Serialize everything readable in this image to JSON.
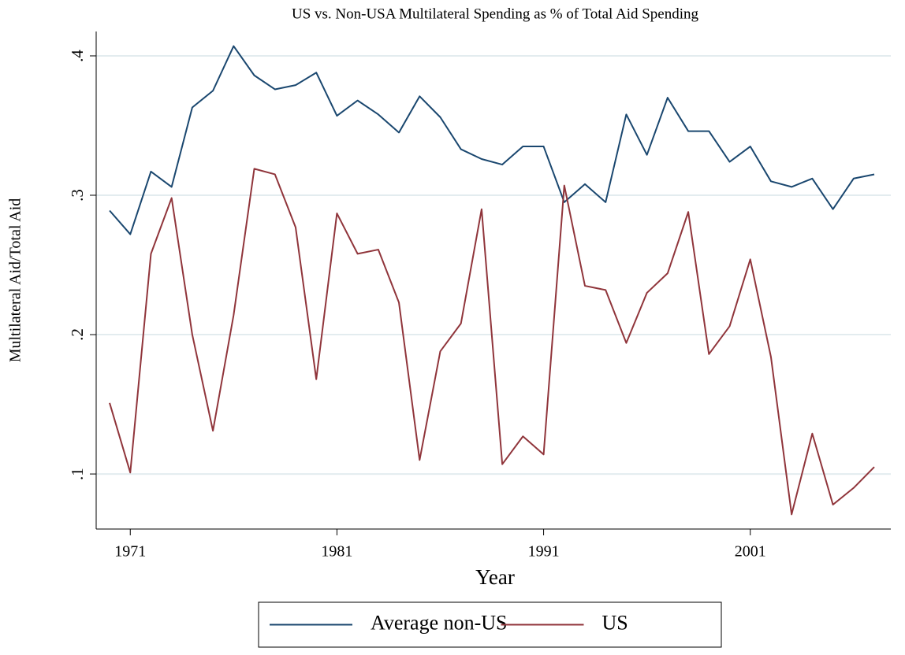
{
  "chart_data": {
    "type": "line",
    "title": "US vs. Non-USA Multilateral Spending as % of Total Aid Spending",
    "x_label": "Year",
    "y_label": "Multilateral Aid/Total Aid",
    "x": [
      1970,
      1971,
      1972,
      1973,
      1974,
      1975,
      1976,
      1977,
      1978,
      1979,
      1980,
      1981,
      1982,
      1983,
      1984,
      1985,
      1986,
      1987,
      1988,
      1989,
      1990,
      1991,
      1992,
      1993,
      1994,
      1995,
      1996,
      1997,
      1998,
      1999,
      2000,
      2001,
      2002,
      2003,
      2004,
      2005,
      2006,
      2007
    ],
    "series": [
      {
        "name": "Average non-US",
        "color": "#1a476f",
        "values": [
          0.289,
          0.272,
          0.317,
          0.306,
          0.363,
          0.375,
          0.407,
          0.386,
          0.376,
          0.379,
          0.388,
          0.357,
          0.368,
          0.358,
          0.345,
          0.371,
          0.356,
          0.333,
          0.326,
          0.322,
          0.335,
          0.335,
          0.295,
          0.308,
          0.295,
          0.358,
          0.329,
          0.37,
          0.346,
          0.346,
          0.324,
          0.335,
          0.31,
          0.306,
          0.312,
          0.29,
          0.312,
          0.315
        ]
      },
      {
        "name": "US",
        "color": "#90353b",
        "values": [
          0.151,
          0.101,
          0.258,
          0.298,
          0.2,
          0.131,
          0.214,
          0.319,
          0.315,
          0.277,
          0.168,
          0.287,
          0.258,
          0.261,
          0.223,
          0.11,
          0.188,
          0.208,
          0.29,
          0.107,
          0.127,
          0.114,
          0.307,
          0.235,
          0.232,
          0.194,
          0.23,
          0.244,
          0.288,
          0.186,
          0.206,
          0.254,
          0.184,
          0.071,
          0.129,
          0.078,
          0.09,
          0.105
        ]
      }
    ],
    "xlim": [
      1969.35,
      2007.8
    ],
    "ylim": [
      0.0605,
      0.4175
    ],
    "xticks": [
      1971,
      1981,
      1991,
      2001
    ],
    "yticks": [
      {
        "value": 0.1,
        "label": ".1"
      },
      {
        "value": 0.2,
        "label": ".2"
      },
      {
        "value": 0.3,
        "label": ".3"
      },
      {
        "value": 0.4,
        "label": ".4"
      }
    ],
    "grid": true,
    "legend": "bottom"
  }
}
